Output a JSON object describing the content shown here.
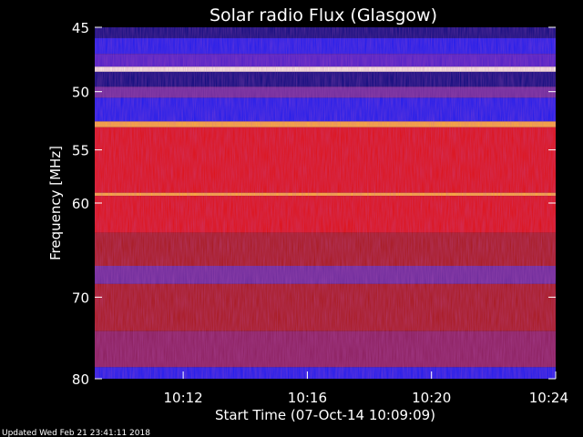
{
  "chart_data": {
    "type": "heatmap",
    "title": "Solar radio Flux (Glasgow)",
    "ylabel": "Frequency [MHz]",
    "xlabel": "Start Time (07-Oct-14 10:09:09)",
    "x_unit": "time (07-Oct-14)",
    "xlim": [
      "10:09:09",
      "10:24:00"
    ],
    "x_ticks": [
      "10:12",
      "10:16",
      "10:20",
      "10:24"
    ],
    "ylim": [
      45,
      80
    ],
    "y_ticks": [
      45,
      50,
      55,
      60,
      70,
      80
    ],
    "y_scale": "log",
    "z": {
      "description": "radio flux intensity bands by frequency",
      "bands": [
        {
          "from": 45.0,
          "to": 45.8,
          "level": "navy"
        },
        {
          "from": 45.8,
          "to": 47.0,
          "level": "blue"
        },
        {
          "from": 47.0,
          "to": 48.0,
          "level": "blue-violet"
        },
        {
          "from": 48.0,
          "to": 48.4,
          "level": "white"
        },
        {
          "from": 48.4,
          "to": 49.6,
          "level": "navy"
        },
        {
          "from": 49.6,
          "to": 50.5,
          "level": "violet"
        },
        {
          "from": 50.5,
          "to": 52.5,
          "level": "blue"
        },
        {
          "from": 52.5,
          "to": 53.0,
          "level": "orange"
        },
        {
          "from": 53.0,
          "to": 59.0,
          "level": "red"
        },
        {
          "from": 59.0,
          "to": 59.3,
          "level": "orange"
        },
        {
          "from": 59.3,
          "to": 63.0,
          "level": "red"
        },
        {
          "from": 63.0,
          "to": 66.5,
          "level": "dark-red"
        },
        {
          "from": 66.5,
          "to": 68.5,
          "level": "violet"
        },
        {
          "from": 68.5,
          "to": 74.0,
          "level": "dark-red"
        },
        {
          "from": 74.0,
          "to": 78.5,
          "level": "red-violet"
        },
        {
          "from": 78.5,
          "to": 80.0,
          "level": "blue"
        }
      ]
    },
    "colors": {
      "navy": "#07087a",
      "blue": "#1a1aee",
      "blue-violet": "#4b1ec8",
      "violet": "#6a2a9a",
      "white": "#fff6e0",
      "orange": "#ffb030",
      "red": "#e01010",
      "dark-red": "#a81818",
      "red-violet": "#8a1e5a"
    },
    "grid": false,
    "legend": "none"
  },
  "footer": {
    "updated": "Updated Wed Feb 21 23:41:11 2018"
  }
}
